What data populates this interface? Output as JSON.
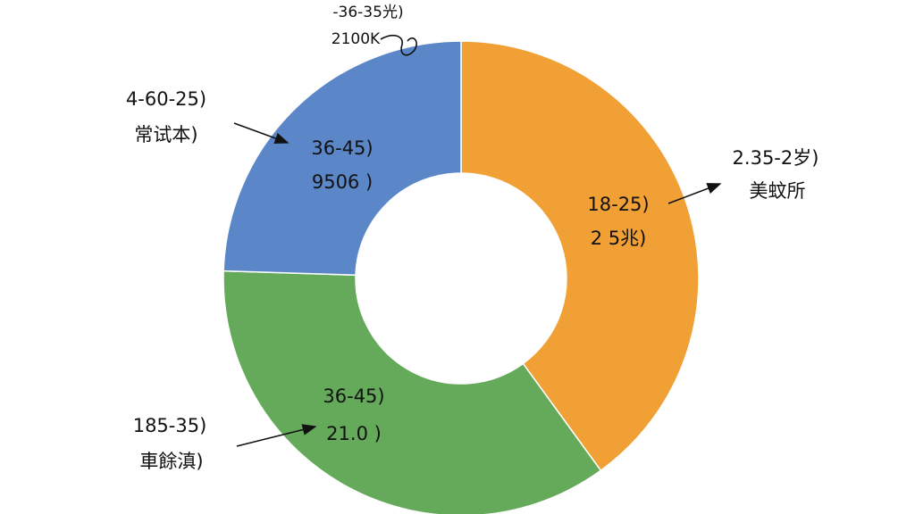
{
  "chart_data": {
    "type": "donut",
    "categories": [
      "18-25)",
      "36-45)",
      "36-45)"
    ],
    "sublabels": [
      "2 5兆)",
      "21.0 )",
      "9506 )"
    ],
    "values": [
      40,
      35.5,
      24.5
    ],
    "colors": [
      "#f0a035",
      "#65aa5a",
      "#5b87c8"
    ],
    "annotations": [
      [
        "2.35-2岁)",
        "美蚊所"
      ],
      [
        "185-35)",
        "車餘滇)"
      ],
      [
        "4-60-25)",
        "常试本)"
      ],
      [
        "-36-35光)",
        "2100K"
      ]
    ]
  }
}
